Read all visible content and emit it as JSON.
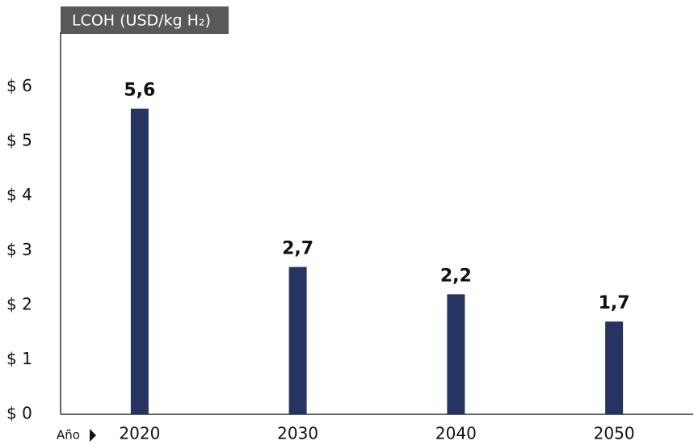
{
  "chart_data": {
    "type": "bar",
    "title": "LCOH (USD/kg H₂)",
    "x_label": "Año",
    "categories": [
      "2020",
      "2030",
      "2040",
      "2050"
    ],
    "values": [
      5.6,
      2.7,
      2.2,
      1.7
    ],
    "value_labels": [
      "5,6",
      "2,7",
      "2,2",
      "1,7"
    ],
    "color": "#263461",
    "ylim": [
      0,
      7
    ],
    "yticks": [
      {
        "value": 0,
        "label": "$ 0"
      },
      {
        "value": 1,
        "label": "$ 1"
      },
      {
        "value": 2,
        "label": "$ 2"
      },
      {
        "value": 3,
        "label": "$ 3"
      },
      {
        "value": 4,
        "label": "$ 4"
      },
      {
        "value": 5,
        "label": "$ 5"
      },
      {
        "value": 6,
        "label": "$ 6"
      }
    ],
    "grid": false
  }
}
